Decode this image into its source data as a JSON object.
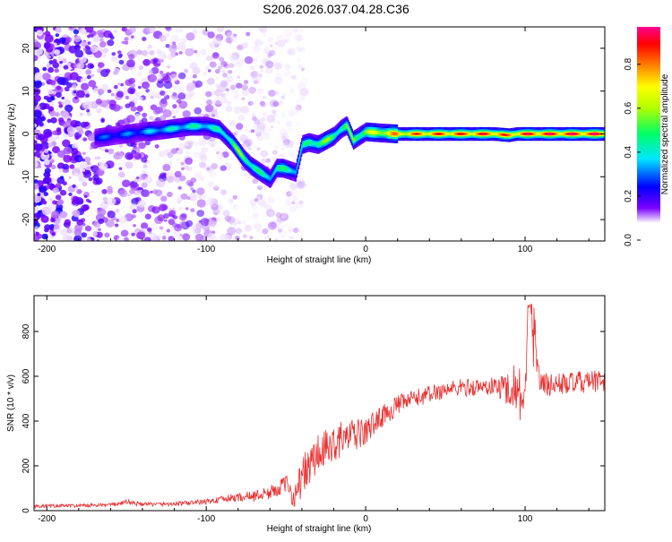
{
  "figure": {
    "title": "S206.2026.037.04.28.C36"
  },
  "chart_data": [
    {
      "type": "heatmap",
      "xlabel": "Height of straight line (km)",
      "ylabel": "Frequency (Hz)",
      "xlim": [
        -208,
        150
      ],
      "ylim": [
        -25,
        25
      ],
      "xticks": [
        -200,
        -100,
        0,
        100
      ],
      "xtick_labels": [
        "-200",
        "-100",
        "0",
        "100"
      ],
      "yticks": [
        -20,
        -10,
        0,
        10,
        20
      ],
      "ytick_labels": [
        "-20",
        "-10",
        "0",
        "10",
        "20"
      ],
      "colorbar": {
        "label": "Normalized spectral amplitude",
        "range": [
          0,
          0.97
        ],
        "ticks": [
          0.0,
          0.2,
          0.4,
          0.6,
          0.8
        ],
        "tick_labels": [
          "0.0",
          "0.2",
          "0.4",
          "0.6",
          "0.8"
        ]
      },
      "ridge": {
        "description": "dominant frequency track (Hz) vs height (km) with normalized amplitude",
        "x": [
          -170,
          -160,
          -150,
          -140,
          -130,
          -120,
          -110,
          -100,
          -92,
          -88,
          -84,
          -80,
          -76,
          -72,
          -68,
          -64,
          -60,
          -56,
          -52,
          -48,
          -44,
          -40,
          -36,
          -30,
          -25,
          -20,
          -16,
          -12,
          -8,
          -4,
          0,
          10,
          20,
          40,
          60,
          80,
          90,
          95,
          100,
          110,
          130,
          150
        ],
        "y": [
          -1,
          -0.5,
          0,
          0.5,
          0.8,
          1.3,
          1.8,
          1.8,
          1.0,
          -0.5,
          -2.0,
          -4.0,
          -6.0,
          -7.5,
          -8.5,
          -9.5,
          -10.5,
          -8.0,
          -8.0,
          -8.5,
          -9.0,
          -2.5,
          -2.0,
          -2.5,
          -1.5,
          -0.5,
          1.0,
          2.0,
          -1.5,
          -0.5,
          0.5,
          0.2,
          0.0,
          0.0,
          0.0,
          0.0,
          -0.3,
          0.0,
          0.0,
          0.0,
          0.0,
          0.0
        ],
        "amplitude": [
          0.3,
          0.3,
          0.32,
          0.35,
          0.4,
          0.42,
          0.45,
          0.45,
          0.45,
          0.5,
          0.55,
          0.6,
          0.6,
          0.55,
          0.5,
          0.45,
          0.45,
          0.5,
          0.5,
          0.48,
          0.45,
          0.45,
          0.5,
          0.6,
          0.6,
          0.55,
          0.55,
          0.55,
          0.6,
          0.6,
          0.65,
          0.75,
          0.82,
          0.88,
          0.9,
          0.92,
          0.85,
          0.9,
          0.93,
          0.95,
          0.95,
          0.95
        ]
      },
      "noise_region": "scattered low-amplitude speckle for heights below about -100 km, fading toward -40 km"
    },
    {
      "type": "line",
      "xlabel": "Height of straight line (km)",
      "ylabel": "SNR (10 * v/v)",
      "xlim": [
        -208,
        150
      ],
      "ylim": [
        0,
        960
      ],
      "xticks": [
        -200,
        -100,
        0,
        100
      ],
      "xtick_labels": [
        "-200",
        "-100",
        "0",
        "100"
      ],
      "yticks": [
        0,
        200,
        400,
        600,
        800
      ],
      "ytick_labels": [
        "0",
        "200",
        "400",
        "600",
        "800"
      ],
      "series": [
        {
          "name": "SNR",
          "color": "#e83030",
          "x": [
            -208,
            -180,
            -160,
            -150,
            -140,
            -120,
            -100,
            -80,
            -70,
            -60,
            -50,
            -45,
            -40,
            -35,
            -30,
            -25,
            -20,
            -15,
            -10,
            -5,
            0,
            5,
            10,
            20,
            30,
            40,
            50,
            60,
            70,
            80,
            90,
            95,
            100,
            103,
            110,
            120,
            130,
            140,
            150
          ],
          "y": [
            20,
            22,
            25,
            40,
            28,
            30,
            40,
            60,
            65,
            80,
            120,
            60,
            150,
            200,
            250,
            270,
            300,
            320,
            330,
            340,
            350,
            390,
            420,
            470,
            500,
            520,
            540,
            550,
            550,
            555,
            545,
            560,
            480,
            900,
            560,
            565,
            570,
            575,
            580
          ],
          "noise_amplitude": [
            8,
            8,
            8,
            15,
            8,
            10,
            12,
            20,
            25,
            30,
            40,
            50,
            90,
            100,
            100,
            90,
            80,
            80,
            75,
            70,
            60,
            55,
            50,
            45,
            40,
            40,
            40,
            40,
            40,
            40,
            80,
            120,
            150,
            200,
            60,
            50,
            50,
            50,
            50
          ]
        }
      ]
    }
  ]
}
